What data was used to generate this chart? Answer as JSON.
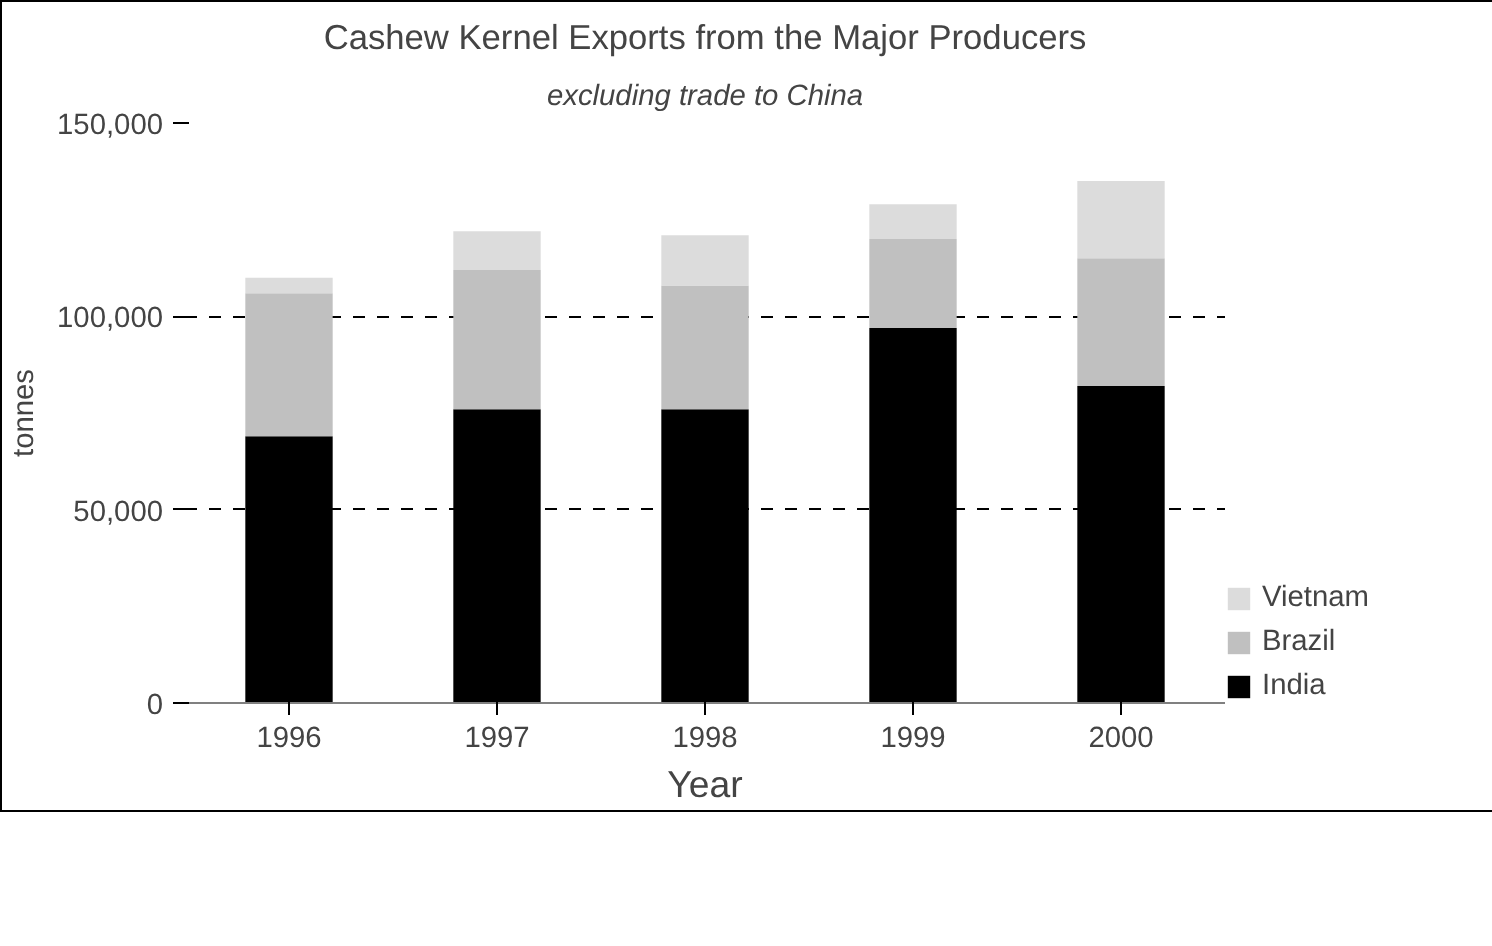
{
  "chart_data": {
    "type": "bar",
    "title": "Cashew Kernel Exports from the Major Producers",
    "subtitle": "excluding trade to China",
    "xlabel": "Year",
    "ylabel": "tonnes",
    "categories": [
      "1996",
      "1997",
      "1998",
      "1999",
      "2000"
    ],
    "stacked": true,
    "series": [
      {
        "name": "India",
        "color": "#000000",
        "values": [
          69000,
          76000,
          76000,
          97000,
          82000
        ]
      },
      {
        "name": "Brazil",
        "color": "#c0c0c0",
        "values": [
          37000,
          36000,
          32000,
          23000,
          33000
        ]
      },
      {
        "name": "Vietnam",
        "color": "#dcdcdc",
        "values": [
          4000,
          10000,
          13000,
          9000,
          20000
        ]
      }
    ],
    "ylim": [
      0,
      150000
    ],
    "yticks": [
      {
        "value": 0,
        "label": "0"
      },
      {
        "value": 50000,
        "label": "50,000"
      },
      {
        "value": 100000,
        "label": "100,000"
      },
      {
        "value": 150000,
        "label": "150,000"
      }
    ],
    "grid": "y",
    "legend": "right"
  }
}
